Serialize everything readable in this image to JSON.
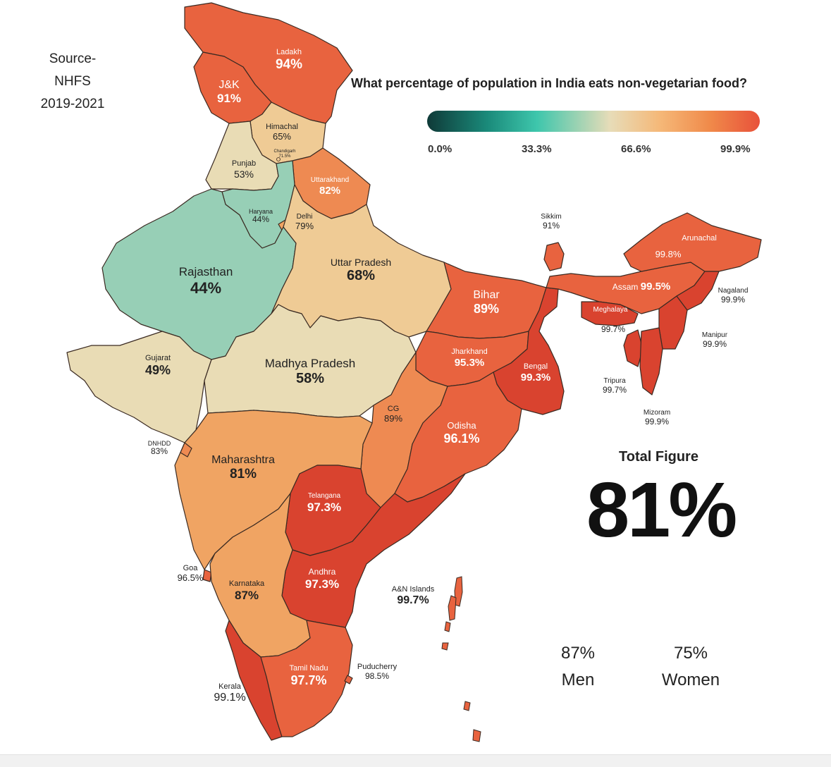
{
  "source": {
    "line1": "Source-",
    "line2": "NHFS",
    "line3": "2019-2021"
  },
  "title": "What percentage of population in India eats non-vegetarian food?",
  "legend": {
    "ticks": [
      "0.0%",
      "33.3%",
      "66.6%",
      "99.9%"
    ],
    "colors": [
      "#0f3a38",
      "#3ec6ac",
      "#e7dcb8",
      "#f5b878",
      "#e8513a"
    ]
  },
  "total": {
    "label": "Total Figure",
    "value": "81%"
  },
  "gender": {
    "men_value": "87%",
    "men_label": "Men",
    "women_value": "75%",
    "women_label": "Women"
  },
  "colors": {
    "teal": "#97cfb6",
    "beige": "#e9dcb5",
    "sand": "#efcb95",
    "light_orange": "#f0a463",
    "orange": "#ee8a52",
    "red_orange": "#e8633f",
    "red": "#d9432f"
  },
  "states": {
    "ladakh": {
      "name": "Ladakh",
      "value": "94%"
    },
    "jk": {
      "name": "J&K",
      "value": "91%"
    },
    "himachal": {
      "name": "Himachal",
      "value": "65%"
    },
    "chandigarh": {
      "name": "Chandigarh",
      "value": "71.5%"
    },
    "punjab": {
      "name": "Punjab",
      "value": "53%"
    },
    "uttarakhand": {
      "name": "Uttarakhand",
      "value": "82%"
    },
    "haryana": {
      "name": "Haryana",
      "value": "44%"
    },
    "delhi": {
      "name": "Delhi",
      "value": "79%"
    },
    "rajasthan": {
      "name": "Rajasthan",
      "value": "44%"
    },
    "up": {
      "name": "Uttar Pradesh",
      "value": "68%"
    },
    "bihar": {
      "name": "Bihar",
      "value": "89%"
    },
    "sikkim": {
      "name": "Sikkim",
      "value": "91%"
    },
    "arunachal": {
      "name": "Arunachal",
      "value": "99.8%"
    },
    "assam": {
      "name": "Assam",
      "value": "99.5%"
    },
    "nagaland": {
      "name": "Nagaland",
      "value": "99.9%"
    },
    "meghalaya": {
      "name": "Meghalaya",
      "value": "99.7%"
    },
    "manipur": {
      "name": "Manipur",
      "value": "99.9%"
    },
    "tripura": {
      "name": "Tripura",
      "value": "99.7%"
    },
    "mizoram": {
      "name": "Mizoram",
      "value": "99.9%"
    },
    "gujarat": {
      "name": "Gujarat",
      "value": "49%"
    },
    "mp": {
      "name": "Madhya Pradesh",
      "value": "58%"
    },
    "jharkhand": {
      "name": "Jharkhand",
      "value": "95.3%"
    },
    "bengal": {
      "name": "Bengal",
      "value": "99.3%"
    },
    "cg": {
      "name": "CG",
      "value": "89%"
    },
    "odisha": {
      "name": "Odisha",
      "value": "96.1%"
    },
    "dnhdd": {
      "name": "DNHDD",
      "value": "83%"
    },
    "maharashtra": {
      "name": "Maharashtra",
      "value": "81%"
    },
    "telangana": {
      "name": "Telangana",
      "value": "97.3%"
    },
    "goa": {
      "name": "Goa",
      "value": "96.5%"
    },
    "karnataka": {
      "name": "Karnataka",
      "value": "87%"
    },
    "andhra": {
      "name": "Andhra",
      "value": "97.3%"
    },
    "an_islands": {
      "name": "A&N Islands",
      "value": "99.7%"
    },
    "tamilnadu": {
      "name": "Tamil Nadu",
      "value": "97.7%"
    },
    "puducherry": {
      "name": "Puducherry",
      "value": "98.5%"
    },
    "kerala": {
      "name": "Kerala",
      "value": "99.1%"
    }
  }
}
